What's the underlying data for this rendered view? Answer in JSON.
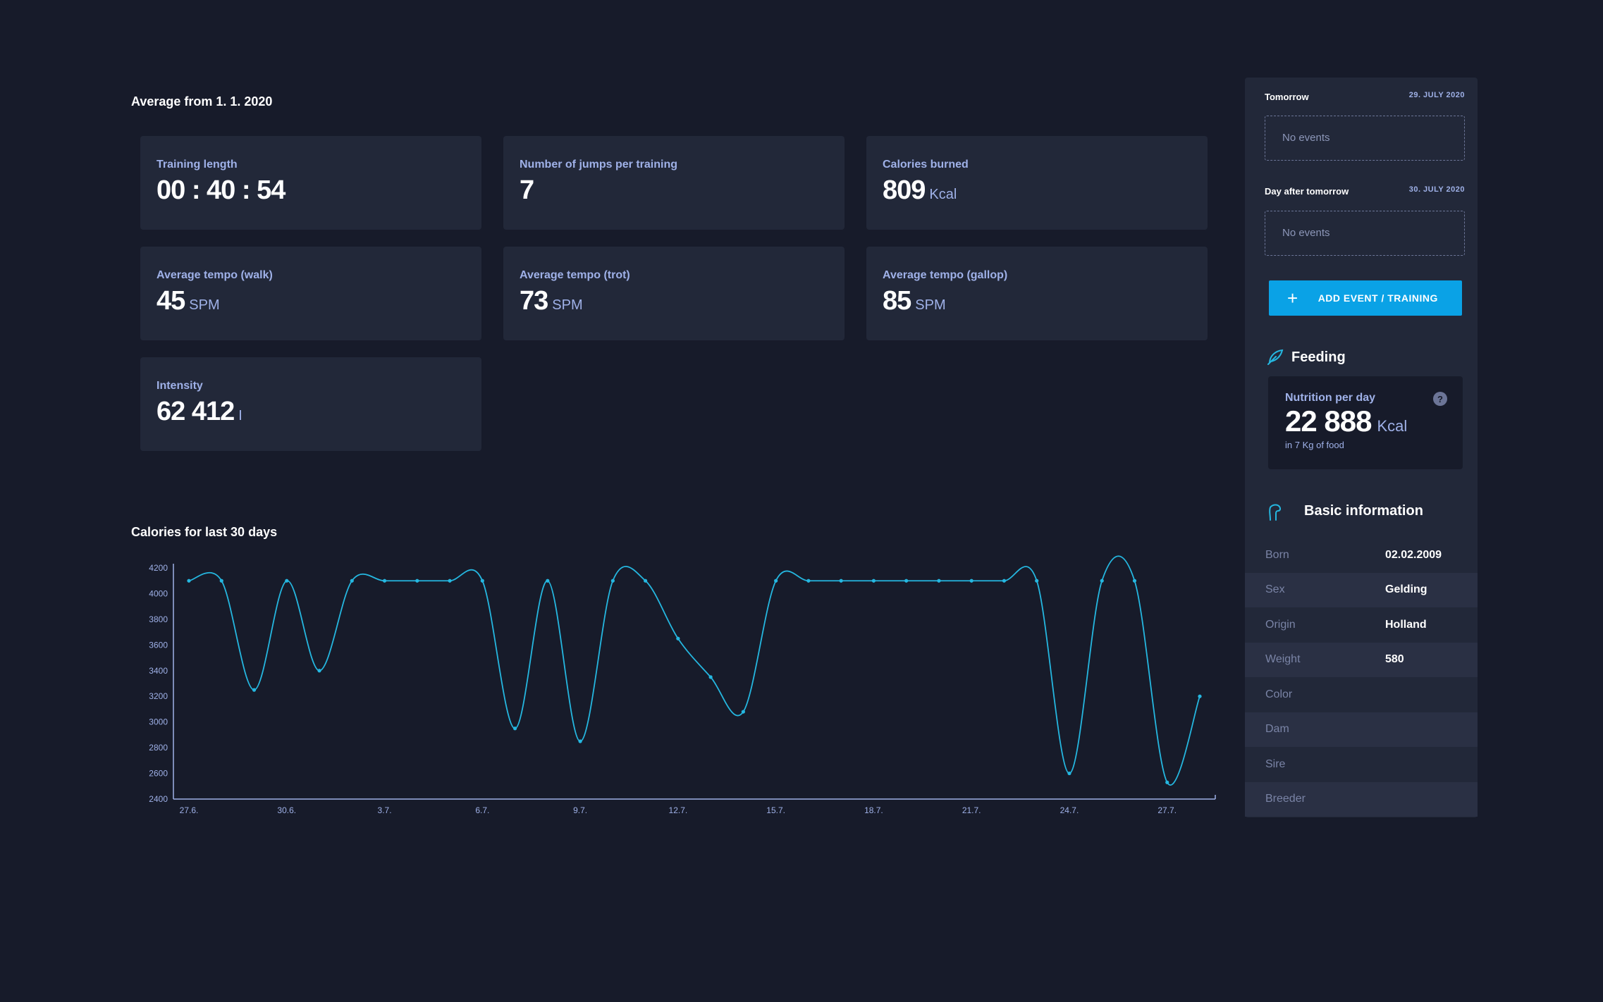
{
  "overview": {
    "title": "Average from 1. 1. 2020",
    "stats": [
      {
        "label": "Training length",
        "value": "00 : 40 : 54",
        "unit": ""
      },
      {
        "label": "Number of jumps per training",
        "value": "7",
        "unit": ""
      },
      {
        "label": "Calories burned",
        "value": "809",
        "unit": "Kcal"
      },
      {
        "label": "Average tempo (walk)",
        "value": "45",
        "unit": "SPM"
      },
      {
        "label": "Average tempo (trot)",
        "value": "73",
        "unit": "SPM"
      },
      {
        "label": "Average tempo (gallop)",
        "value": "85",
        "unit": "SPM"
      },
      {
        "label": "Intensity",
        "value": "62 412",
        "unit": "I"
      }
    ]
  },
  "chart_data": {
    "type": "line",
    "title": "Calories for last 30 days",
    "xlabel": "",
    "ylabel": "",
    "ylim": [
      2400,
      4200
    ],
    "yticks": [
      2400,
      2600,
      2800,
      3000,
      3200,
      3400,
      3600,
      3800,
      4000,
      4200
    ],
    "x_tick_labels": [
      "27.6.",
      "30.6.",
      "3.7.",
      "6.7.",
      "9.7.",
      "12.7.",
      "15.7.",
      "18.7.",
      "21.7.",
      "24.7.",
      "27.7."
    ],
    "x": [
      "27.6.",
      "28.6.",
      "29.6.",
      "30.6.",
      "1.7.",
      "2.7.",
      "3.7.",
      "4.7.",
      "5.7.",
      "6.7.",
      "7.7.",
      "8.7.",
      "9.7.",
      "10.7.",
      "11.7.",
      "12.7.",
      "13.7.",
      "14.7.",
      "15.7.",
      "16.7.",
      "17.7.",
      "18.7.",
      "19.7.",
      "20.7.",
      "21.7.",
      "22.7.",
      "23.7.",
      "24.7.",
      "25.7.",
      "26.7.",
      "27.7.",
      "28.7."
    ],
    "series": [
      {
        "name": "",
        "values": [
          4100,
          4100,
          3250,
          4100,
          3400,
          4100,
          4100,
          4100,
          4100,
          4100,
          2950,
          4100,
          2850,
          4100,
          4100,
          3650,
          3350,
          3080,
          4100,
          4100,
          4100,
          4100,
          4100,
          4100,
          4100,
          4100,
          4100,
          2600,
          4100,
          4100,
          2530,
          3200
        ]
      }
    ],
    "color": "#25b7e0",
    "grid": false,
    "legend": "none"
  },
  "schedule": {
    "days": [
      {
        "label": "Tomorrow",
        "date": "29. JULY 2020",
        "events_text": "No events"
      },
      {
        "label": "Day after tomorrow",
        "date": "30. JULY 2020",
        "events_text": "No events"
      }
    ],
    "add_button_label": "ADD EVENT / TRAINING"
  },
  "feeding": {
    "title": "Feeding",
    "label": "Nutrition per day",
    "value": "22 888",
    "unit": "Kcal",
    "sub": "in 7 Kg of food",
    "help": "?"
  },
  "basic_info": {
    "title": "Basic information",
    "rows": [
      {
        "key": "Born",
        "value": "02.02.2009"
      },
      {
        "key": "Sex",
        "value": "Gelding"
      },
      {
        "key": "Origin",
        "value": "Holland"
      },
      {
        "key": "Weight",
        "value": "580"
      },
      {
        "key": "Color",
        "value": ""
      },
      {
        "key": "Dam",
        "value": ""
      },
      {
        "key": "Sire",
        "value": ""
      },
      {
        "key": "Breeder",
        "value": ""
      }
    ]
  },
  "colors": {
    "background": "#171b2a",
    "card": "#222839",
    "accent": "#0aa2e6",
    "label": "#9fb1e8",
    "line": "#25b7e0"
  }
}
